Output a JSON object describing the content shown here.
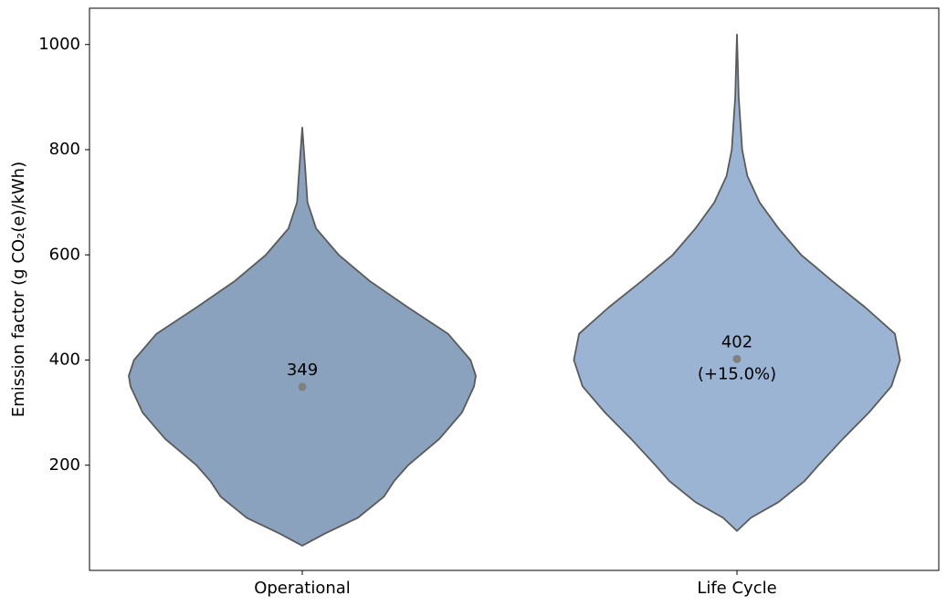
{
  "chart_data": {
    "type": "violin",
    "y_label": "Emission factor (g CO₂(e)/kWh)",
    "categories": [
      "Operational",
      "Life Cycle"
    ],
    "ylim": [
      0,
      1069
    ],
    "yticks": [
      200,
      400,
      600,
      800,
      1000
    ],
    "outline_color": "#5a5a5a",
    "marker_color": "#808080",
    "series": [
      {
        "name": "Operational",
        "color": "#8aa2bd",
        "values": [
          349,
          null
        ],
        "profile_y": [
          47,
          70,
          100,
          140,
          170,
          200,
          250,
          300,
          350,
          370,
          400,
          450,
          500,
          550,
          600,
          650,
          700,
          750,
          842
        ],
        "density": [
          0,
          0.13,
          0.32,
          0.47,
          0.53,
          0.61,
          0.79,
          0.92,
          0.99,
          1.0,
          0.97,
          0.84,
          0.61,
          0.39,
          0.21,
          0.08,
          0.03,
          0.02,
          0
        ]
      },
      {
        "name": "Life Cycle",
        "color": "#9bb4d3",
        "values": [
          null,
          402
        ],
        "profile_y": [
          75,
          100,
          130,
          170,
          200,
          250,
          300,
          350,
          400,
          450,
          500,
          550,
          600,
          650,
          700,
          750,
          800,
          900,
          1019
        ],
        "density": [
          0,
          0.08,
          0.24,
          0.39,
          0.47,
          0.61,
          0.76,
          0.89,
          0.94,
          0.91,
          0.74,
          0.55,
          0.37,
          0.24,
          0.13,
          0.06,
          0.03,
          0.01,
          0
        ]
      }
    ],
    "annotations": [
      "(+15.0%)"
    ]
  }
}
